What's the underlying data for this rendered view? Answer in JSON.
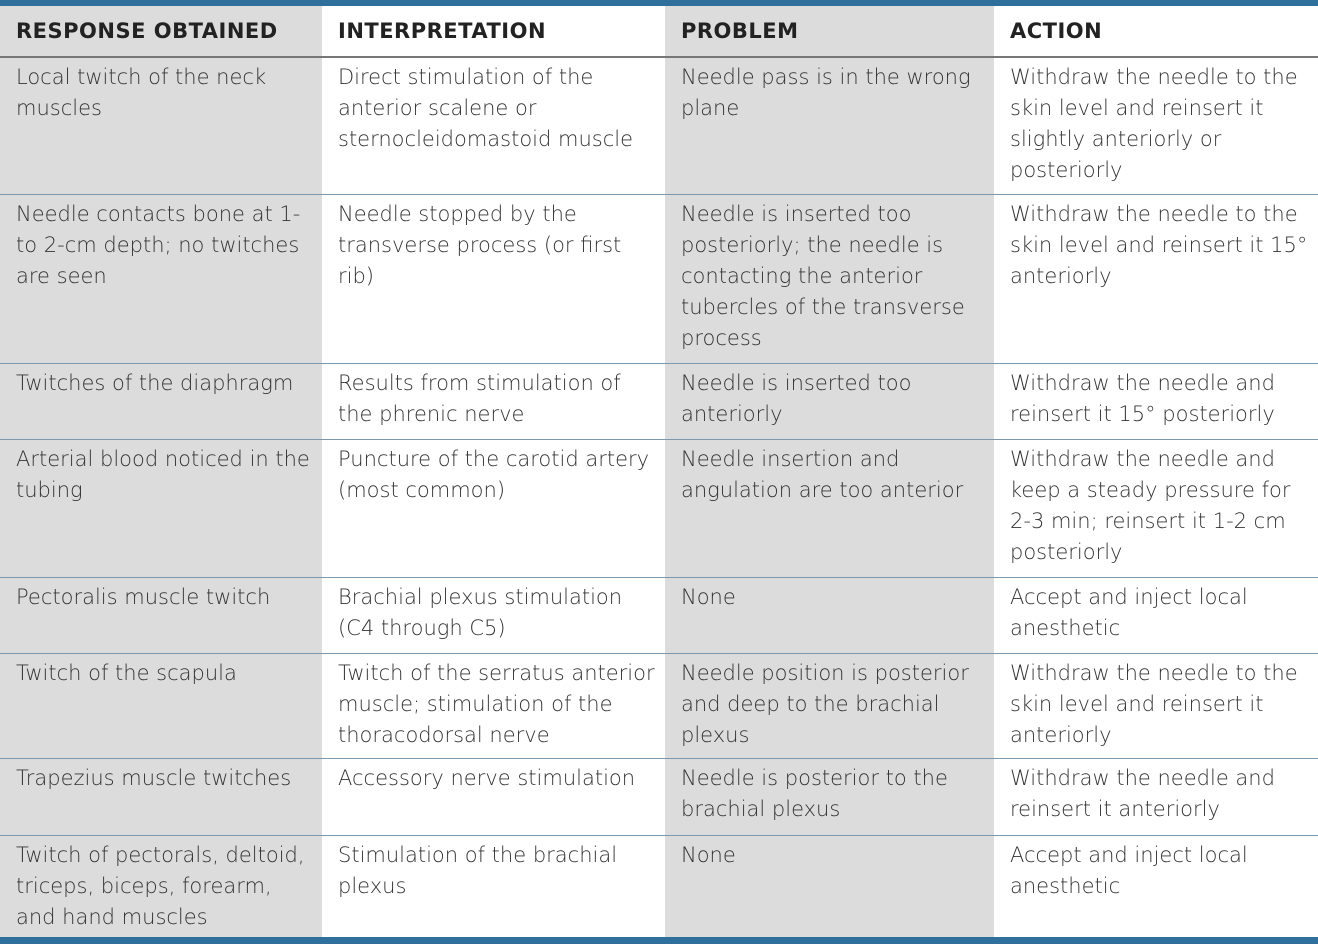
{
  "headers": [
    "RESPONSE OBTAINED",
    "INTERPRETATION",
    "PROBLEM",
    "ACTION"
  ],
  "rows": [
    [
      "Local twitch of the neck muscles",
      "Direct stimulation of the anterior scalene or sternocleidomastoid muscle",
      "Needle pass is in the wrong plane",
      "Withdraw the needle to the skin level and reinsert it slightly anteriorly or posteriorly"
    ],
    [
      "Needle contacts bone at 1- to 2-cm depth; no twitches are seen",
      "Needle stopped by the transverse process (or first rib)",
      "Needle is inserted too posteriorly; the needle is contacting the anterior tubercles of the transverse process",
      "Withdraw the needle to the skin level and reinsert it 15° anteriorly"
    ],
    [
      "Twitches of the diaphragm",
      "Results from stimulation of the phrenic nerve",
      "Needle is inserted too anteriorly",
      "Withdraw the needle and reinsert it 15° posteriorly"
    ],
    [
      "Arterial blood noticed in the tubing",
      "Puncture of the carotid artery (most common)",
      "Needle insertion and angulation are too anterior",
      "Withdraw the needle and keep a steady pressure for 2-3 min; reinsert it 1-2 cm posteriorly"
    ],
    [
      "Pectoralis muscle twitch",
      "Brachial plexus stimulation (C4 through C5)",
      "None",
      "Accept and inject local anesthetic"
    ],
    [
      "Twitch of the scapula",
      "Twitch of the serratus anterior muscle; stimulation of the thoracodorsal nerve",
      "Needle position is posterior and deep to the brachial plexus",
      "Withdraw the needle to the skin level and reinsert it anteriorly"
    ],
    [
      "Trapezius muscle twitches",
      "Accessory nerve stimulation",
      "Needle is posterior to the brachial plexus",
      "Withdraw the needle and reinsert it anteriorly"
    ],
    [
      "Twitch of pectorals, deltoid, triceps, biceps, forearm, and hand muscles",
      "Stimulation of the brachial plexus",
      "None",
      "Accept and inject local anesthetic"
    ]
  ]
}
